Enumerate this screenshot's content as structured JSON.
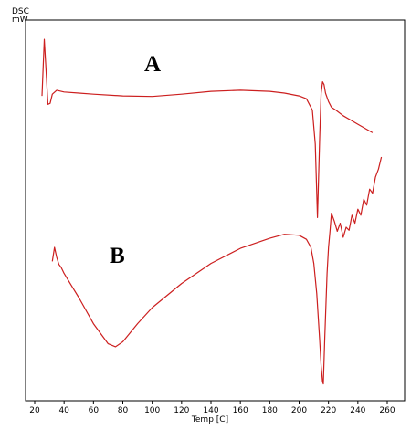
{
  "chart_data": {
    "type": "line",
    "title": "",
    "ylabel_line1": "DSC",
    "ylabel_line2": "mW",
    "xlabel": "Temp [C]",
    "xlim": [
      20,
      260
    ],
    "xticks": [
      20,
      40,
      60,
      80,
      100,
      120,
      140,
      160,
      180,
      200,
      220,
      240,
      260
    ],
    "grid": false,
    "line_color": "#cc1f1f",
    "series": [
      {
        "name": "A",
        "x": [
          25,
          26.5,
          27.5,
          29,
          30.5,
          32,
          35,
          40,
          50,
          60,
          80,
          100,
          120,
          140,
          160,
          180,
          190,
          200,
          205,
          209,
          211,
          212.5,
          214,
          215,
          216,
          217,
          218,
          220,
          222,
          225,
          230,
          240,
          250
        ],
        "y": [
          -0.05,
          0.95,
          0.5,
          -0.2,
          -0.18,
          -0.02,
          0.05,
          0.02,
          0.0,
          -0.02,
          -0.05,
          -0.06,
          -0.02,
          0.03,
          0.05,
          0.03,
          0.0,
          -0.05,
          -0.1,
          -0.3,
          -0.9,
          -2.2,
          -0.8,
          0.0,
          0.2,
          0.15,
          0.0,
          -0.15,
          -0.25,
          -0.3,
          -0.4,
          -0.55,
          -0.7
        ]
      },
      {
        "name": "B",
        "x": [
          32,
          33.5,
          35,
          36.5,
          38,
          40,
          45,
          50,
          60,
          70,
          75,
          80,
          90,
          100,
          120,
          140,
          160,
          180,
          190,
          200,
          205,
          208,
          210,
          212,
          214,
          215,
          216,
          216.5,
          217.5,
          219,
          220,
          221,
          222,
          224,
          226,
          228,
          230,
          232,
          234,
          236,
          238,
          240,
          242,
          244,
          246,
          248,
          250,
          252,
          254,
          256
        ],
        "y": [
          -1.2,
          -0.5,
          -1.0,
          -1.35,
          -1.5,
          -1.8,
          -2.4,
          -3.0,
          -4.3,
          -5.3,
          -5.45,
          -5.2,
          -4.3,
          -3.5,
          -2.3,
          -1.3,
          -0.55,
          -0.05,
          0.15,
          0.1,
          -0.1,
          -0.5,
          -1.3,
          -2.8,
          -5.1,
          -6.4,
          -7.2,
          -7.3,
          -5.0,
          -1.8,
          -0.5,
          0.3,
          1.2,
          0.8,
          0.3,
          0.7,
          0.0,
          0.5,
          0.35,
          1.1,
          0.7,
          1.4,
          1.1,
          1.9,
          1.6,
          2.4,
          2.2,
          3.0,
          3.4,
          4.0
        ]
      }
    ]
  }
}
